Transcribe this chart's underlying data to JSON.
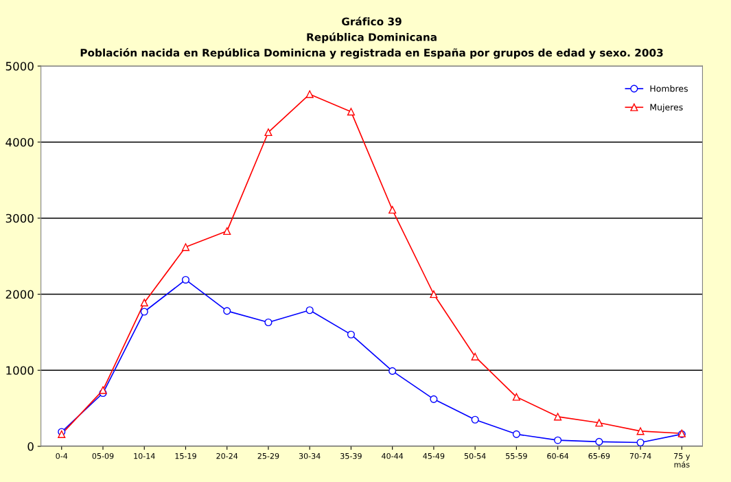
{
  "chart_data": {
    "type": "line",
    "title": "Gráfico 39\nRepública Dominicana\nPoblación nacida en República Dominicna y registrada en España por grupos de edad y sexo. 2003",
    "categories": [
      "0-4",
      "05-09",
      "10-14",
      "15-19",
      "20-24",
      "25-29",
      "30-34",
      "35-39",
      "40-44",
      "45-49",
      "50-54",
      "55-59",
      "60-64",
      "65-69",
      "70-74",
      "75 y\nmás"
    ],
    "series": [
      {
        "name": "Hombres",
        "color": "#0000ff",
        "marker": "circle",
        "values": [
          190,
          700,
          1770,
          2190,
          1780,
          1630,
          1790,
          1470,
          990,
          620,
          350,
          160,
          80,
          60,
          50,
          160
        ]
      },
      {
        "name": "Mujeres",
        "color": "#ff0000",
        "marker": "triangle",
        "values": [
          160,
          740,
          1890,
          2620,
          2830,
          4130,
          4630,
          4400,
          3110,
          2000,
          1180,
          650,
          390,
          310,
          200,
          170
        ]
      }
    ],
    "ylim": [
      0,
      5000
    ],
    "yticks": [
      0,
      1000,
      2000,
      3000,
      4000,
      5000
    ],
    "grid": "y",
    "legend": "top right"
  }
}
